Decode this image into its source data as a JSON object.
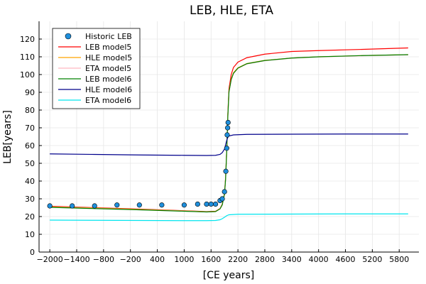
{
  "chart_data": {
    "type": "line",
    "title": "LEB, HLE, ETA",
    "xlabel": "[CE years]",
    "ylabel": "LEB[years]",
    "xlim": [
      -2000,
      6000
    ],
    "ylim": [
      0,
      120
    ],
    "xticks": [
      -2000,
      -1400,
      -800,
      -200,
      400,
      1000,
      1600,
      2200,
      2800,
      3400,
      4000,
      4600,
      5200,
      5800
    ],
    "xtick_labels": [
      "−2000",
      "−1400",
      "−800",
      "−200",
      "400",
      "1000",
      "1600",
      "2200",
      "2800",
      "3400",
      "4000",
      "4600",
      "5200",
      "5800"
    ],
    "yticks": [
      0,
      10,
      20,
      30,
      40,
      50,
      60,
      70,
      80,
      90,
      100,
      110,
      120
    ],
    "grid": true,
    "legend_position": "top-left",
    "series": [
      {
        "name": "Historic LEB",
        "kind": "scatter",
        "color": "#1f8fdc",
        "points": [
          [
            -2000,
            26
          ],
          [
            -1500,
            26
          ],
          [
            -1000,
            26
          ],
          [
            -500,
            26.5
          ],
          [
            0,
            26.5
          ],
          [
            500,
            26.5
          ],
          [
            1000,
            26.5
          ],
          [
            1300,
            27
          ],
          [
            1500,
            27
          ],
          [
            1600,
            27
          ],
          [
            1700,
            27
          ],
          [
            1800,
            29
          ],
          [
            1850,
            30
          ],
          [
            1900,
            34
          ],
          [
            1930,
            45.5
          ],
          [
            1950,
            58.5
          ],
          [
            1960,
            66
          ],
          [
            1970,
            70
          ],
          [
            1980,
            73
          ]
        ]
      },
      {
        "name": "LEB model5",
        "kind": "line",
        "color": "#ff0000",
        "points": [
          [
            -2000,
            25.8
          ],
          [
            -1000,
            25
          ],
          [
            0,
            24.2
          ],
          [
            1000,
            23.3
          ],
          [
            1500,
            22.8
          ],
          [
            1700,
            23
          ],
          [
            1800,
            24.5
          ],
          [
            1850,
            27
          ],
          [
            1900,
            33
          ],
          [
            1925,
            42
          ],
          [
            1950,
            58
          ],
          [
            1975,
            78
          ],
          [
            2000,
            92
          ],
          [
            2050,
            100
          ],
          [
            2100,
            104
          ],
          [
            2200,
            107
          ],
          [
            2400,
            109.5
          ],
          [
            2800,
            111.5
          ],
          [
            3400,
            113
          ],
          [
            4000,
            113.5
          ],
          [
            5000,
            114.2
          ],
          [
            6000,
            115
          ]
        ]
      },
      {
        "name": "HLE model5",
        "kind": "line",
        "color": "#ffa500",
        "points": [
          [
            -2000,
            25.5
          ],
          [
            -1000,
            24.8
          ],
          [
            0,
            24
          ],
          [
            1000,
            23.2
          ],
          [
            1500,
            22.7
          ],
          [
            1700,
            22.9
          ],
          [
            1800,
            24.4
          ],
          [
            1850,
            26.8
          ],
          [
            1900,
            32.8
          ],
          [
            1925,
            41.5
          ],
          [
            1950,
            57.5
          ],
          [
            1975,
            77
          ],
          [
            2000,
            90.5
          ],
          [
            2050,
            97.5
          ],
          [
            2100,
            101
          ],
          [
            2200,
            103.8
          ],
          [
            2400,
            106.2
          ],
          [
            2800,
            108
          ],
          [
            3400,
            109.3
          ],
          [
            4000,
            110
          ],
          [
            5000,
            110.7
          ],
          [
            6000,
            111.2
          ]
        ]
      },
      {
        "name": "ETA model5",
        "kind": "line",
        "color": "#ffb6c1",
        "points": [
          [
            -2000,
            25.3
          ],
          [
            -1000,
            24.6
          ],
          [
            0,
            23.8
          ],
          [
            1000,
            23.1
          ],
          [
            1500,
            22.6
          ],
          [
            1700,
            22.8
          ],
          [
            1800,
            24.3
          ],
          [
            1850,
            26.6
          ],
          [
            1900,
            32.6
          ],
          [
            1925,
            41.2
          ],
          [
            1950,
            57.2
          ],
          [
            1975,
            76.5
          ],
          [
            2000,
            90
          ],
          [
            2050,
            97
          ],
          [
            2100,
            100.5
          ],
          [
            2200,
            103.5
          ],
          [
            2400,
            106
          ],
          [
            2800,
            107.8
          ],
          [
            3400,
            109.2
          ],
          [
            4000,
            109.9
          ],
          [
            5000,
            110.6
          ],
          [
            6000,
            111.1
          ]
        ]
      },
      {
        "name": "LEB model6",
        "kind": "line",
        "color": "#008000",
        "points": [
          [
            -2000,
            25.2
          ],
          [
            -1000,
            24.5
          ],
          [
            0,
            23.8
          ],
          [
            1000,
            23
          ],
          [
            1500,
            22.6
          ],
          [
            1700,
            22.8
          ],
          [
            1800,
            24.3
          ],
          [
            1850,
            26.6
          ],
          [
            1900,
            32.6
          ],
          [
            1925,
            41.3
          ],
          [
            1950,
            57.3
          ],
          [
            1975,
            76.7
          ],
          [
            2000,
            90.2
          ],
          [
            2050,
            97.2
          ],
          [
            2100,
            100.7
          ],
          [
            2200,
            103.6
          ],
          [
            2400,
            106.1
          ],
          [
            2800,
            107.9
          ],
          [
            3400,
            109.3
          ],
          [
            4000,
            110
          ],
          [
            5000,
            110.7
          ],
          [
            6000,
            111.2
          ]
        ]
      },
      {
        "name": "HLE model6",
        "kind": "line",
        "color": "#00008b",
        "points": [
          [
            -2000,
            55.3
          ],
          [
            -1000,
            55
          ],
          [
            0,
            54.7
          ],
          [
            1000,
            54.5
          ],
          [
            1500,
            54.4
          ],
          [
            1700,
            54.5
          ],
          [
            1800,
            55
          ],
          [
            1850,
            56
          ],
          [
            1900,
            58
          ],
          [
            1925,
            60.5
          ],
          [
            1950,
            63
          ],
          [
            1975,
            64.6
          ],
          [
            2000,
            65.4
          ],
          [
            2100,
            66
          ],
          [
            2400,
            66.3
          ],
          [
            3400,
            66.4
          ],
          [
            4600,
            66.5
          ],
          [
            6000,
            66.5
          ]
        ]
      },
      {
        "name": "ETA model6",
        "kind": "line",
        "color": "#00e5ee",
        "points": [
          [
            -2000,
            18
          ],
          [
            -1000,
            17.9
          ],
          [
            0,
            17.8
          ],
          [
            1000,
            17.7
          ],
          [
            1500,
            17.7
          ],
          [
            1700,
            17.8
          ],
          [
            1800,
            18.2
          ],
          [
            1850,
            18.8
          ],
          [
            1900,
            19.6
          ],
          [
            1950,
            20.5
          ],
          [
            2000,
            21
          ],
          [
            2200,
            21.3
          ],
          [
            3400,
            21.4
          ],
          [
            4600,
            21.5
          ],
          [
            6000,
            21.5
          ]
        ]
      }
    ]
  }
}
